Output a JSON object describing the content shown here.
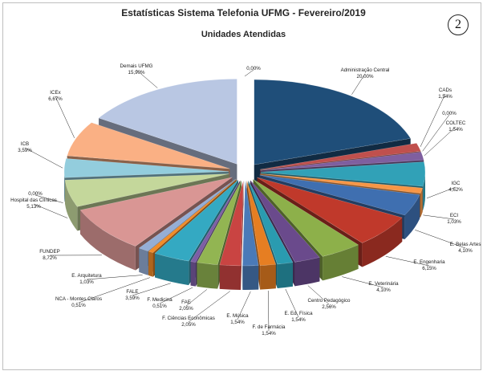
{
  "page_badge": "2",
  "chart_data": {
    "type": "pie",
    "title": "Estatísticas Sistema Telefonia UFMG - Fevereiro/2019",
    "subtitle": "Unidades Atendidas",
    "slices": [
      {
        "name": "Administração Central",
        "value": 20.0,
        "label": "20,00%",
        "color": "#1f4e79"
      },
      {
        "name": "CADs",
        "value": 1.54,
        "label": "1,54%",
        "color": "#c0504d"
      },
      {
        "name": "",
        "value": 0.0,
        "label": "0,00%",
        "color": "#9bbb59"
      },
      {
        "name": "COLTEC",
        "value": 1.54,
        "label": "1,54%",
        "color": "#7f5f9f"
      },
      {
        "name": "IGC",
        "value": 4.62,
        "label": "4,62%",
        "color": "#31a1b7"
      },
      {
        "name": "ECI",
        "value": 1.03,
        "label": "1,03%",
        "color": "#f79646"
      },
      {
        "name": "E. Belas Artes",
        "value": 4.1,
        "label": "4,10%",
        "color": "#3f6fb0"
      },
      {
        "name": "E. Engenharia",
        "value": 6.15,
        "label": "6,15%",
        "color": "#c0392b"
      },
      {
        "name": "E. Veterinária",
        "value": 4.1,
        "label": "4,10%",
        "color": "#8db04a"
      },
      {
        "name": "Centro Pedagógico",
        "value": 2.56,
        "label": "2,56%",
        "color": "#6a4a8c"
      },
      {
        "name": "E. Ed. Física",
        "value": 1.54,
        "label": "1,54%",
        "color": "#2a9bb0"
      },
      {
        "name": "F. de Farmácia",
        "value": 1.54,
        "label": "1,54%",
        "color": "#e67e22"
      },
      {
        "name": "E. Música",
        "value": 1.54,
        "label": "1,54%",
        "color": "#4a7ab8"
      },
      {
        "name": "F. Ciências Econômicas",
        "value": 2.05,
        "label": "2,05%",
        "color": "#c94442"
      },
      {
        "name": "FAE",
        "value": 2.05,
        "label": "2,05%",
        "color": "#92b552"
      },
      {
        "name": "F. Medicina",
        "value": 0.51,
        "label": "0,51%",
        "color": "#7d5ea6"
      },
      {
        "name": "FALE",
        "value": 3.59,
        "label": "3,59%",
        "color": "#34a9c2"
      },
      {
        "name": "NCA - Montes Claros",
        "value": 0.51,
        "label": "0,51%",
        "color": "#f28c28"
      },
      {
        "name": "E. Arquitetura",
        "value": 1.03,
        "label": "1,03%",
        "color": "#95aed6"
      },
      {
        "name": "FUNDEP",
        "value": 8.72,
        "label": "8,72%",
        "color": "#d99694"
      },
      {
        "name": "Hospital das Clínicas",
        "value": 5.13,
        "label": "5,13%",
        "color": "#c4d79b"
      },
      {
        "name": "",
        "value": 0.0,
        "label": "0,00%",
        "color": "#b3a2c7"
      },
      {
        "name": "ICB",
        "value": 3.59,
        "label": "3,59%",
        "color": "#93cddd"
      },
      {
        "name": "ICEx",
        "value": 6.67,
        "label": "6,67%",
        "color": "#fab084"
      },
      {
        "name": "Demais UFMG",
        "value": 15.9,
        "label": "15,90%",
        "color": "#b9c7e3"
      },
      {
        "name": "",
        "value": 0.0,
        "label": "0,00%",
        "color": "#d9d9d9"
      }
    ]
  }
}
